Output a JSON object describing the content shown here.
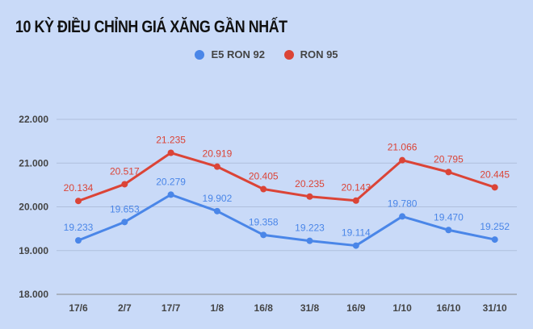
{
  "chart_data": {
    "type": "line",
    "title": "10 KỲ ĐIỀU CHỈNH GIÁ XĂNG GẦN NHẤT",
    "categories": [
      "17/6",
      "2/7",
      "17/7",
      "1/8",
      "16/8",
      "31/8",
      "16/9",
      "1/10",
      "16/10",
      "31/10"
    ],
    "series": [
      {
        "name": "E5 RON 92",
        "color": "#4a86e8",
        "values": [
          19233,
          19653,
          20279,
          19902,
          19358,
          19223,
          19114,
          19780,
          19470,
          19252
        ],
        "labels": [
          "19.233",
          "19.653",
          "20.279",
          "19.902",
          "19.358",
          "19.223",
          "19.114",
          "19.780",
          "19.470",
          "19.252"
        ]
      },
      {
        "name": "RON 95",
        "color": "#db4437",
        "values": [
          20134,
          20517,
          21235,
          20919,
          20405,
          20235,
          20143,
          21066,
          20795,
          20445
        ],
        "labels": [
          "20.134",
          "20.517",
          "21.235",
          "20.919",
          "20.405",
          "20.235",
          "20.143",
          "21.066",
          "20.795",
          "20.445"
        ]
      }
    ],
    "yticks": [
      18000,
      19000,
      20000,
      21000,
      22000
    ],
    "ytick_labels": [
      "18.000",
      "19.000",
      "20.000",
      "21.000",
      "22.000"
    ],
    "ylim": [
      18000,
      22000
    ],
    "grid": true,
    "legend": "top-center",
    "xlabel": "",
    "ylabel": ""
  }
}
